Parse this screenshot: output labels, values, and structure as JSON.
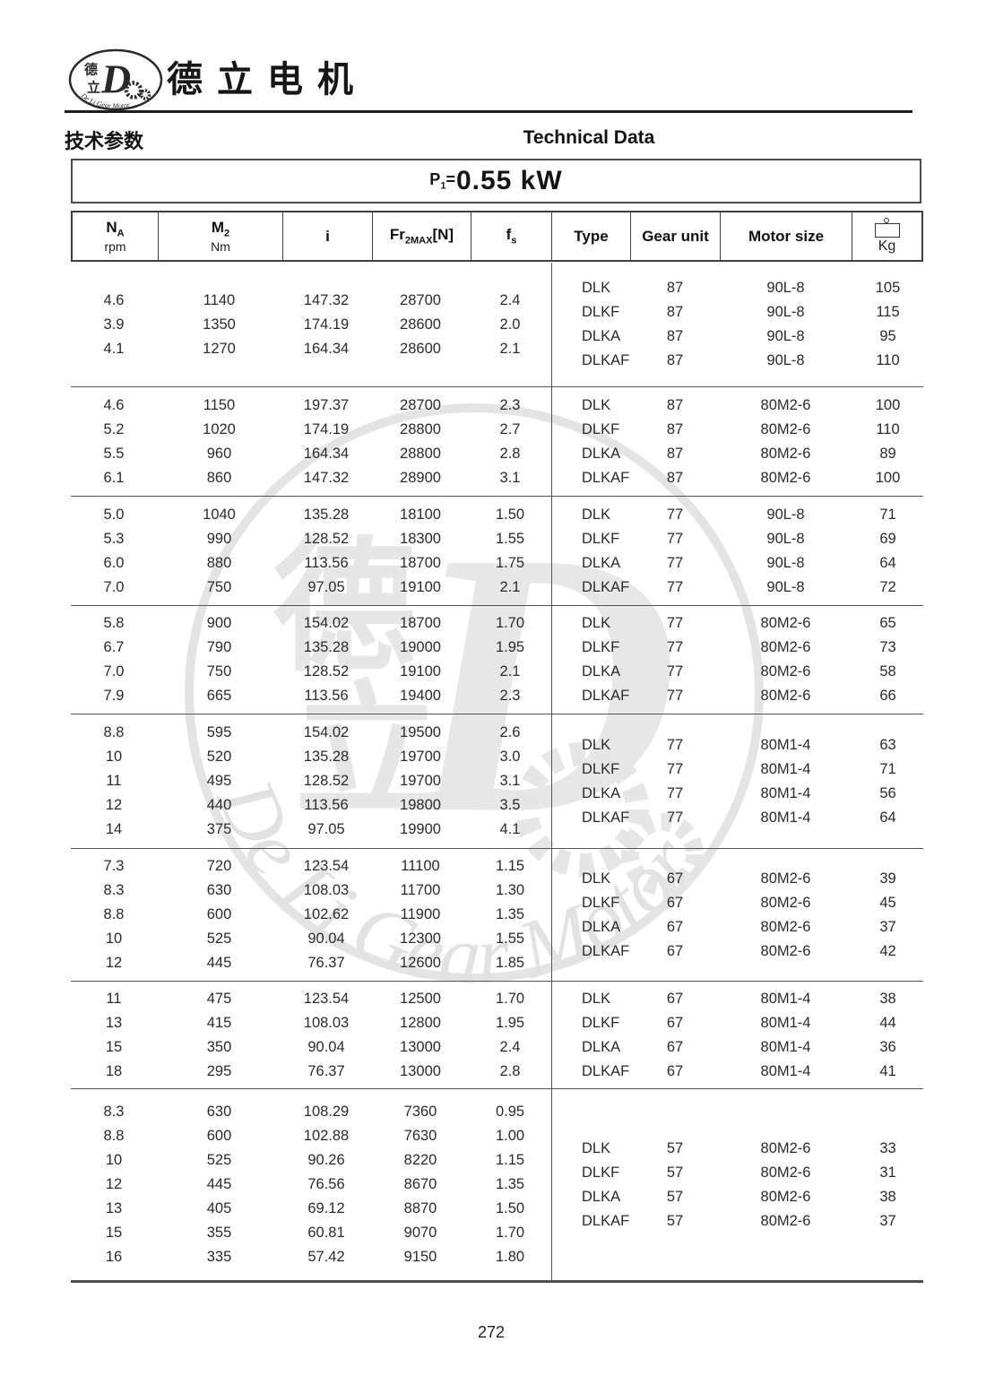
{
  "header": {
    "brand_name": "德立电机",
    "logo": {
      "char_top": "德",
      "char_bottom": "立",
      "letter": "D",
      "curve_text": "De Li Gear Motor"
    },
    "section_title_zh": "技术参数",
    "section_title_en": "Technical Data"
  },
  "power_banner": {
    "symbol": "P",
    "symbol_sub": "1",
    "equals": "=",
    "value": "0.55 kW"
  },
  "table": {
    "columns": [
      {
        "main": "N",
        "sub": "A",
        "unit": "rpm"
      },
      {
        "main": "M",
        "sub": "2",
        "unit": "Nm"
      },
      {
        "main": "i"
      },
      {
        "main": "Fr",
        "sub": "2MAX",
        "suffix": "[N]"
      },
      {
        "main": "f",
        "sub": "s"
      },
      {
        "main": "Type"
      },
      {
        "main": "Gear unit"
      },
      {
        "main": "Motor size"
      },
      {
        "main": "Kg",
        "icon": "weight-icon"
      }
    ],
    "blocks": [
      {
        "left": [
          [
            "4.6",
            "1140",
            "147.32",
            "28700",
            "2.4"
          ],
          [
            "3.9",
            "1350",
            "174.19",
            "28600",
            "2.0"
          ],
          [
            "4.1",
            "1270",
            "164.34",
            "28600",
            "2.1"
          ]
        ],
        "right": [
          [
            "DLK",
            "87",
            "90L-8",
            "105"
          ],
          [
            "DLKF",
            "87",
            "90L-8",
            "115"
          ],
          [
            "DLKA",
            "87",
            "90L-8",
            "95"
          ],
          [
            "DLKAF",
            "87",
            "90L-8",
            "110"
          ]
        ]
      },
      {
        "left": [
          [
            "4.6",
            "1150",
            "197.37",
            "28700",
            "2.3"
          ],
          [
            "5.2",
            "1020",
            "174.19",
            "28800",
            "2.7"
          ],
          [
            "5.5",
            "960",
            "164.34",
            "28800",
            "2.8"
          ],
          [
            "6.1",
            "860",
            "147.32",
            "28900",
            "3.1"
          ]
        ],
        "right": [
          [
            "DLK",
            "87",
            "80M2-6",
            "100"
          ],
          [
            "DLKF",
            "87",
            "80M2-6",
            "110"
          ],
          [
            "DLKA",
            "87",
            "80M2-6",
            "89"
          ],
          [
            "DLKAF",
            "87",
            "80M2-6",
            "100"
          ]
        ]
      },
      {
        "left": [
          [
            "5.0",
            "1040",
            "135.28",
            "18100",
            "1.50"
          ],
          [
            "5.3",
            "990",
            "128.52",
            "18300",
            "1.55"
          ],
          [
            "6.0",
            "880",
            "113.56",
            "18700",
            "1.75"
          ],
          [
            "7.0",
            "750",
            "97.05",
            "19100",
            "2.1"
          ]
        ],
        "right": [
          [
            "DLK",
            "77",
            "90L-8",
            "71"
          ],
          [
            "DLKF",
            "77",
            "90L-8",
            "69"
          ],
          [
            "DLKA",
            "77",
            "90L-8",
            "64"
          ],
          [
            "DLKAF",
            "77",
            "90L-8",
            "72"
          ]
        ]
      },
      {
        "left": [
          [
            "5.8",
            "900",
            "154.02",
            "18700",
            "1.70"
          ],
          [
            "6.7",
            "790",
            "135.28",
            "19000",
            "1.95"
          ],
          [
            "7.0",
            "750",
            "128.52",
            "19100",
            "2.1"
          ],
          [
            "7.9",
            "665",
            "113.56",
            "19400",
            "2.3"
          ]
        ],
        "right": [
          [
            "DLK",
            "77",
            "80M2-6",
            "65"
          ],
          [
            "DLKF",
            "77",
            "80M2-6",
            "73"
          ],
          [
            "DLKA",
            "77",
            "80M2-6",
            "58"
          ],
          [
            "DLKAF",
            "77",
            "80M2-6",
            "66"
          ]
        ]
      },
      {
        "left": [
          [
            "8.8",
            "595",
            "154.02",
            "19500",
            "2.6"
          ],
          [
            "10",
            "520",
            "135.28",
            "19700",
            "3.0"
          ],
          [
            "11",
            "495",
            "128.52",
            "19700",
            "3.1"
          ],
          [
            "12",
            "440",
            "113.56",
            "19800",
            "3.5"
          ],
          [
            "14",
            "375",
            "97.05",
            "19900",
            "4.1"
          ]
        ],
        "right": [
          [
            "DLK",
            "77",
            "80M1-4",
            "63"
          ],
          [
            "DLKF",
            "77",
            "80M1-4",
            "71"
          ],
          [
            "DLKA",
            "77",
            "80M1-4",
            "56"
          ],
          [
            "DLKAF",
            "77",
            "80M1-4",
            "64"
          ]
        ]
      },
      {
        "left": [
          [
            "7.3",
            "720",
            "123.54",
            "11100",
            "1.15"
          ],
          [
            "8.3",
            "630",
            "108.03",
            "11700",
            "1.30"
          ],
          [
            "8.8",
            "600",
            "102.62",
            "11900",
            "1.35"
          ],
          [
            "10",
            "525",
            "90.04",
            "12300",
            "1.55"
          ],
          [
            "12",
            "445",
            "76.37",
            "12600",
            "1.85"
          ]
        ],
        "right": [
          [
            "DLK",
            "67",
            "80M2-6",
            "39"
          ],
          [
            "DLKF",
            "67",
            "80M2-6",
            "45"
          ],
          [
            "DLKA",
            "67",
            "80M2-6",
            "37"
          ],
          [
            "DLKAF",
            "67",
            "80M2-6",
            "42"
          ]
        ]
      },
      {
        "left": [
          [
            "11",
            "475",
            "123.54",
            "12500",
            "1.70"
          ],
          [
            "13",
            "415",
            "108.03",
            "12800",
            "1.95"
          ],
          [
            "15",
            "350",
            "90.04",
            "13000",
            "2.4"
          ],
          [
            "18",
            "295",
            "76.37",
            "13000",
            "2.8"
          ]
        ],
        "right": [
          [
            "DLK",
            "67",
            "80M1-4",
            "38"
          ],
          [
            "DLKF",
            "67",
            "80M1-4",
            "44"
          ],
          [
            "DLKA",
            "67",
            "80M1-4",
            "36"
          ],
          [
            "DLKAF",
            "67",
            "80M1-4",
            "41"
          ]
        ]
      },
      {
        "left": [
          [
            "8.3",
            "630",
            "108.29",
            "7360",
            "0.95"
          ],
          [
            "8.8",
            "600",
            "102.88",
            "7630",
            "1.00"
          ],
          [
            "10",
            "525",
            "90.26",
            "8220",
            "1.15"
          ],
          [
            "12",
            "445",
            "76.56",
            "8670",
            "1.35"
          ],
          [
            "13",
            "405",
            "69.12",
            "8870",
            "1.50"
          ],
          [
            "15",
            "355",
            "60.81",
            "9070",
            "1.70"
          ],
          [
            "16",
            "335",
            "57.42",
            "9150",
            "1.80"
          ]
        ],
        "right": [
          [
            "DLK",
            "57",
            "80M2-6",
            "33"
          ],
          [
            "DLKF",
            "57",
            "80M2-6",
            "31"
          ],
          [
            "DLKA",
            "57",
            "80M2-6",
            "38"
          ],
          [
            "DLKAF",
            "57",
            "80M2-6",
            "37"
          ]
        ]
      }
    ]
  },
  "watermark": {
    "char_top": "德",
    "char_bottom": "立",
    "letter": "D",
    "curve_text": "De Li Gear Motor"
  },
  "footer": {
    "page_number": "272"
  }
}
